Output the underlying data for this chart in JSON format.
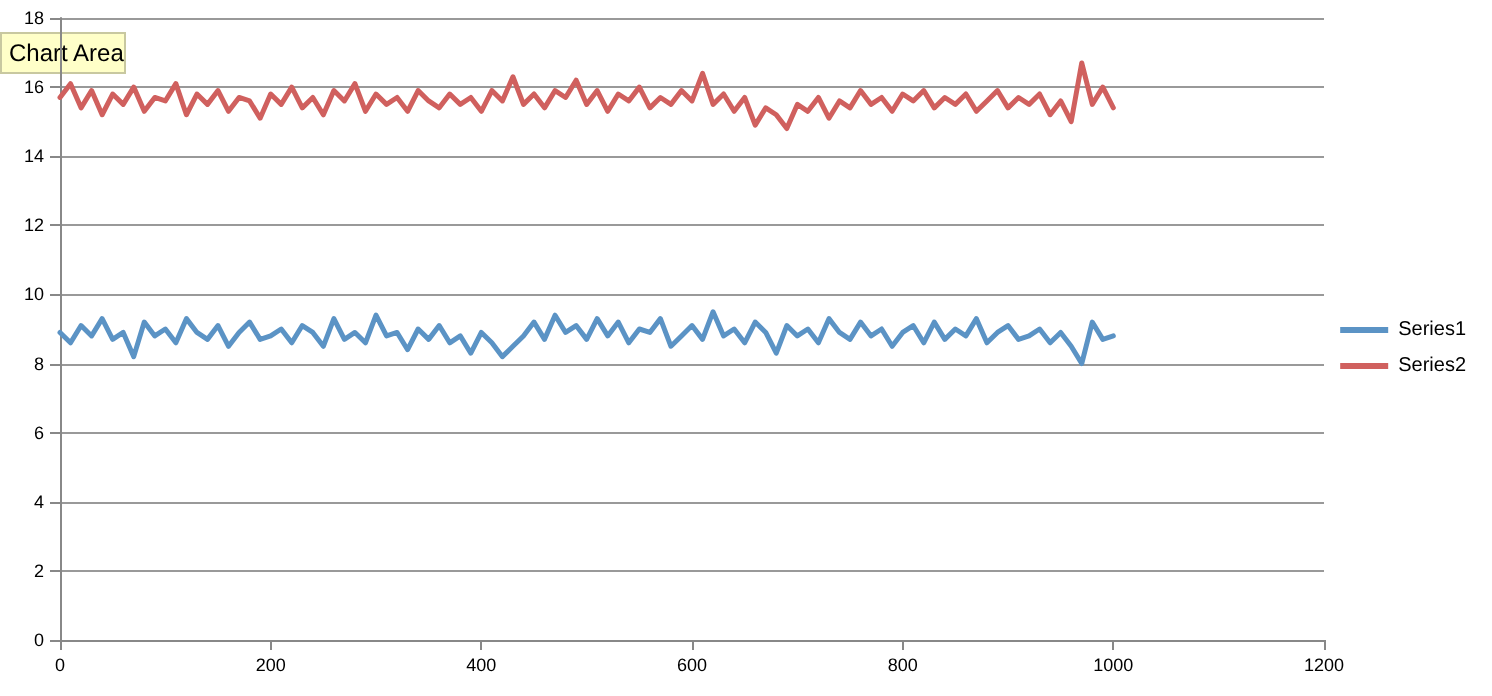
{
  "chart_data": {
    "type": "line",
    "x": [
      0,
      10,
      20,
      30,
      40,
      50,
      60,
      70,
      80,
      90,
      100,
      110,
      120,
      130,
      140,
      150,
      160,
      170,
      180,
      190,
      200,
      210,
      220,
      230,
      240,
      250,
      260,
      270,
      280,
      290,
      300,
      310,
      320,
      330,
      340,
      350,
      360,
      370,
      380,
      390,
      400,
      410,
      420,
      430,
      440,
      450,
      460,
      470,
      480,
      490,
      500,
      510,
      520,
      530,
      540,
      550,
      560,
      570,
      580,
      590,
      600,
      610,
      620,
      630,
      640,
      650,
      660,
      670,
      680,
      690,
      700,
      710,
      720,
      730,
      740,
      750,
      760,
      770,
      780,
      790,
      800,
      810,
      820,
      830,
      840,
      850,
      860,
      870,
      880,
      890,
      900,
      910,
      920,
      930,
      940,
      950,
      960,
      970,
      980,
      990,
      1000
    ],
    "series": [
      {
        "name": "Series1",
        "color": "#5b93c5",
        "values": [
          8.9,
          8.6,
          9.1,
          8.8,
          9.3,
          8.7,
          8.9,
          8.2,
          9.2,
          8.8,
          9.0,
          8.6,
          9.3,
          8.9,
          8.7,
          9.1,
          8.5,
          8.9,
          9.2,
          8.7,
          8.8,
          9.0,
          8.6,
          9.1,
          8.9,
          8.5,
          9.3,
          8.7,
          8.9,
          8.6,
          9.4,
          8.8,
          8.9,
          8.4,
          9.0,
          8.7,
          9.1,
          8.6,
          8.8,
          8.3,
          8.9,
          8.6,
          8.2,
          8.5,
          8.8,
          9.2,
          8.7,
          9.4,
          8.9,
          9.1,
          8.7,
          9.3,
          8.8,
          9.2,
          8.6,
          9.0,
          8.9,
          9.3,
          8.5,
          8.8,
          9.1,
          8.7,
          9.5,
          8.8,
          9.0,
          8.6,
          9.2,
          8.9,
          8.3,
          9.1,
          8.8,
          9.0,
          8.6,
          9.3,
          8.9,
          8.7,
          9.2,
          8.8,
          9.0,
          8.5,
          8.9,
          9.1,
          8.6,
          9.2,
          8.7,
          9.0,
          8.8,
          9.3,
          8.6,
          8.9,
          9.1,
          8.7,
          8.8,
          9.0,
          8.6,
          8.9,
          8.5,
          8.0,
          9.2,
          8.7,
          8.8
        ]
      },
      {
        "name": "Series2",
        "color": "#d0605e",
        "values": [
          15.7,
          16.1,
          15.4,
          15.9,
          15.2,
          15.8,
          15.5,
          16.0,
          15.3,
          15.7,
          15.6,
          16.1,
          15.2,
          15.8,
          15.5,
          15.9,
          15.3,
          15.7,
          15.6,
          15.1,
          15.8,
          15.5,
          16.0,
          15.4,
          15.7,
          15.2,
          15.9,
          15.6,
          16.1,
          15.3,
          15.8,
          15.5,
          15.7,
          15.3,
          15.9,
          15.6,
          15.4,
          15.8,
          15.5,
          15.7,
          15.3,
          15.9,
          15.6,
          16.3,
          15.5,
          15.8,
          15.4,
          15.9,
          15.7,
          16.2,
          15.5,
          15.9,
          15.3,
          15.8,
          15.6,
          16.0,
          15.4,
          15.7,
          15.5,
          15.9,
          15.6,
          16.4,
          15.5,
          15.8,
          15.3,
          15.7,
          14.9,
          15.4,
          15.2,
          14.8,
          15.5,
          15.3,
          15.7,
          15.1,
          15.6,
          15.4,
          15.9,
          15.5,
          15.7,
          15.3,
          15.8,
          15.6,
          15.9,
          15.4,
          15.7,
          15.5,
          15.8,
          15.3,
          15.6,
          15.9,
          15.4,
          15.7,
          15.5,
          15.8,
          15.2,
          15.6,
          15.0,
          16.7,
          15.5,
          16.0,
          15.4
        ]
      }
    ],
    "xlim": [
      0,
      1200
    ],
    "xticks": [
      0,
      200,
      400,
      600,
      800,
      1000,
      1200
    ],
    "ylim": [
      0,
      18
    ],
    "yticks": [
      0,
      2,
      4,
      6,
      8,
      10,
      12,
      14,
      16,
      18
    ],
    "grid": "y",
    "legend": "right",
    "marker": "none",
    "line_style": "solid",
    "annotations": [
      "Chart Area"
    ]
  }
}
